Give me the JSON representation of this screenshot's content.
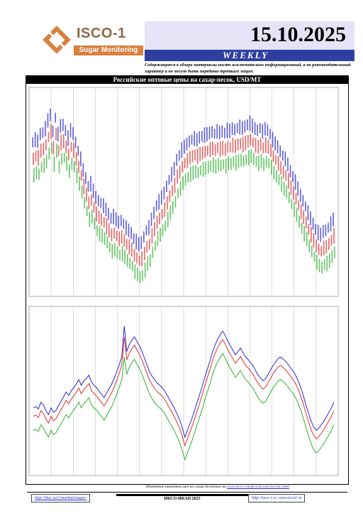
{
  "header": {
    "logo_name": "ISCO-1",
    "logo_tagline": "Sugar Monitoring",
    "date": "15.10.2025",
    "edition": "WEEKLY",
    "disclaimer": "Содержащиеся в обзоре материалы носят исключительно информационный, а не рекомендательный характер и не могут быть переданы третьим лицам."
  },
  "panel": {
    "title": "Российские оптовые цены на сахар-песок, USD/MT"
  },
  "footnote": {
    "text": "Изменение рыночных цен на сахар доступно на ",
    "link1": "www.isco-i.ru/",
    "link2": "docs/isco/prices/isc.html"
  },
  "footer": {
    "left_link": "http://iksc.ru/1/markets/sugar/",
    "middle": "ИКСО-ИКАН 2025",
    "right_links": "http://isco-i.ru, www.isco2.ru"
  },
  "colors": {
    "high": "#2a2ad0",
    "mid": "#e03030",
    "low": "#30b030",
    "brand": "#d9803d",
    "header_blue": "#2f3fa0"
  },
  "chart_data": [
    {
      "type": "bar",
      "description_series": [
        "high",
        "mid",
        "low"
      ],
      "x": [
        0,
        1,
        2,
        3,
        4,
        5,
        6,
        7,
        8,
        9,
        10,
        11,
        12,
        13,
        14,
        15,
        16,
        17,
        18,
        19,
        20,
        21,
        22,
        23,
        24,
        25,
        26,
        27,
        28,
        29,
        30,
        31,
        32,
        33,
        34,
        35,
        36,
        37,
        38,
        39,
        40,
        41,
        42,
        43,
        44,
        45,
        46,
        47,
        48,
        49,
        50,
        51,
        52,
        53,
        54,
        55,
        56,
        57,
        58,
        59,
        60,
        61,
        62,
        63,
        64,
        65,
        66,
        67,
        68,
        69,
        70,
        71,
        72,
        73,
        74,
        75,
        76,
        77,
        78,
        79,
        80,
        81,
        82,
        83,
        84,
        85,
        86,
        87,
        88,
        89,
        90,
        91,
        92,
        93,
        94,
        95,
        96,
        97,
        98,
        99,
        100,
        101,
        102,
        103,
        104,
        105,
        106,
        107,
        108,
        109,
        110,
        111,
        112,
        113,
        114,
        115,
        116,
        117,
        118,
        119
      ],
      "series": [
        {
          "values": [
            720,
            725,
            722,
            735,
            738,
            745,
            760,
            770,
            740,
            765,
            735,
            750,
            752,
            742,
            728,
            742,
            736,
            720,
            705,
            690,
            670,
            655,
            640,
            645,
            632,
            620,
            614,
            610,
            605,
            598,
            590,
            582,
            585,
            580,
            575,
            578,
            572,
            565,
            560,
            555,
            545,
            540,
            535,
            538,
            548,
            560,
            565,
            580,
            592,
            605,
            612,
            620,
            628,
            640,
            652,
            662,
            672,
            688,
            696,
            706,
            712,
            717,
            722,
            725,
            727,
            725,
            729,
            731,
            733,
            735,
            737,
            739,
            736,
            740,
            738,
            740,
            737,
            742,
            741,
            745,
            743,
            746,
            748,
            746,
            749,
            752,
            755,
            750,
            745,
            742,
            746,
            740,
            745,
            742,
            735,
            725,
            718,
            712,
            704,
            696,
            690,
            680,
            668,
            658,
            648,
            636,
            624,
            614,
            604,
            592,
            582,
            572,
            562,
            556,
            552,
            558,
            560,
            565,
            572,
            580
          ]
        },
        {
          "values": [
            690,
            695,
            692,
            705,
            708,
            715,
            730,
            740,
            710,
            735,
            705,
            720,
            722,
            712,
            698,
            712,
            706,
            690,
            675,
            660,
            640,
            625,
            610,
            615,
            602,
            590,
            584,
            580,
            575,
            568,
            560,
            552,
            555,
            550,
            545,
            548,
            542,
            535,
            530,
            525,
            515,
            510,
            505,
            508,
            518,
            530,
            535,
            550,
            562,
            575,
            582,
            590,
            598,
            610,
            622,
            632,
            642,
            658,
            666,
            676,
            682,
            687,
            692,
            695,
            697,
            695,
            699,
            701,
            703,
            705,
            707,
            709,
            706,
            710,
            708,
            710,
            707,
            712,
            711,
            715,
            713,
            716,
            718,
            716,
            719,
            722,
            725,
            720,
            715,
            712,
            716,
            710,
            715,
            712,
            705,
            695,
            688,
            682,
            674,
            666,
            660,
            650,
            638,
            628,
            618,
            606,
            594,
            584,
            574,
            562,
            552,
            542,
            532,
            526,
            522,
            528,
            530,
            535,
            542,
            550
          ]
        },
        {
          "values": [
            660,
            665,
            662,
            675,
            678,
            685,
            700,
            710,
            680,
            705,
            675,
            690,
            692,
            682,
            668,
            682,
            676,
            660,
            645,
            630,
            610,
            595,
            580,
            585,
            572,
            560,
            554,
            550,
            545,
            538,
            530,
            522,
            525,
            520,
            515,
            518,
            512,
            505,
            500,
            495,
            485,
            480,
            475,
            478,
            488,
            500,
            505,
            520,
            532,
            545,
            552,
            560,
            568,
            580,
            592,
            602,
            612,
            628,
            636,
            646,
            652,
            657,
            662,
            665,
            667,
            665,
            669,
            671,
            673,
            675,
            677,
            679,
            676,
            680,
            678,
            680,
            677,
            682,
            681,
            685,
            683,
            686,
            688,
            686,
            689,
            692,
            695,
            690,
            685,
            682,
            686,
            680,
            685,
            682,
            675,
            665,
            658,
            652,
            644,
            636,
            630,
            620,
            608,
            598,
            588,
            576,
            564,
            554,
            544,
            532,
            522,
            512,
            502,
            496,
            492,
            498,
            500,
            505,
            512,
            520
          ]
        }
      ],
      "ylim": [
        440,
        820
      ]
    },
    {
      "type": "line",
      "x": [
        0,
        1,
        2,
        3,
        4,
        5,
        6,
        7,
        8,
        9,
        10,
        11,
        12,
        13,
        14,
        15,
        16,
        17,
        18,
        19,
        20,
        21,
        22,
        23,
        24,
        25,
        26,
        27,
        28,
        29,
        30,
        31,
        32,
        33,
        34,
        35,
        36,
        37,
        38,
        39,
        40,
        41,
        42,
        43,
        44,
        45,
        46,
        47,
        48,
        49,
        50,
        51,
        52,
        53,
        54,
        55,
        56,
        57,
        58,
        59,
        60,
        61,
        62,
        63,
        64,
        65,
        66,
        67,
        68,
        69,
        70,
        71,
        72,
        73,
        74,
        75,
        76,
        77,
        78,
        79,
        80,
        81,
        82,
        83,
        84,
        85,
        86,
        87,
        88,
        89,
        90,
        91,
        92,
        93,
        94,
        95,
        96,
        97,
        98,
        99,
        100,
        101,
        102,
        103,
        104,
        105,
        106,
        107,
        108,
        109,
        110,
        111,
        112,
        113,
        114,
        115,
        116,
        117,
        118,
        119
      ],
      "series": [
        {
          "values": [
            600,
            602,
            598,
            610,
            605,
            595,
            588,
            600,
            592,
            596,
            604,
            612,
            620,
            628,
            622,
            630,
            636,
            642,
            650,
            640,
            648,
            652,
            658,
            646,
            640,
            636,
            630,
            624,
            618,
            626,
            634,
            642,
            652,
            664,
            676,
            690,
            745,
            700,
            712,
            720,
            726,
            718,
            710,
            700,
            688,
            676,
            664,
            656,
            650,
            644,
            640,
            636,
            630,
            622,
            614,
            606,
            598,
            588,
            578,
            564,
            548,
            560,
            572,
            584,
            598,
            612,
            626,
            640,
            656,
            670,
            684,
            700,
            712,
            722,
            730,
            736,
            728,
            718,
            710,
            702,
            694,
            700,
            706,
            698,
            690,
            686,
            680,
            674,
            666,
            658,
            652,
            648,
            652,
            660,
            668,
            676,
            682,
            688,
            690,
            686,
            682,
            676,
            670,
            664,
            656,
            646,
            634,
            620,
            604,
            590,
            576,
            566,
            560,
            564,
            570,
            576,
            584,
            592,
            600,
            610
          ]
        },
        {
          "values": [
            585,
            587,
            583,
            595,
            590,
            580,
            573,
            585,
            577,
            581,
            589,
            597,
            605,
            613,
            607,
            615,
            621,
            627,
            635,
            625,
            633,
            637,
            643,
            631,
            625,
            621,
            615,
            609,
            603,
            611,
            619,
            627,
            637,
            649,
            661,
            675,
            725,
            685,
            697,
            705,
            711,
            703,
            695,
            685,
            673,
            661,
            649,
            641,
            635,
            629,
            625,
            621,
            615,
            607,
            599,
            591,
            583,
            573,
            563,
            549,
            533,
            545,
            557,
            569,
            583,
            597,
            611,
            625,
            641,
            655,
            669,
            685,
            697,
            707,
            715,
            721,
            713,
            703,
            695,
            687,
            679,
            685,
            691,
            683,
            675,
            671,
            665,
            659,
            651,
            643,
            637,
            633,
            637,
            645,
            653,
            661,
            667,
            673,
            675,
            671,
            667,
            661,
            655,
            649,
            641,
            631,
            619,
            605,
            589,
            575,
            561,
            551,
            545,
            549,
            555,
            561,
            569,
            577,
            585,
            595
          ]
        },
        {
          "values": [
            560,
            562,
            558,
            570,
            565,
            555,
            548,
            560,
            552,
            556,
            564,
            572,
            580,
            588,
            582,
            590,
            596,
            602,
            610,
            600,
            608,
            612,
            618,
            606,
            600,
            596,
            590,
            584,
            578,
            586,
            594,
            602,
            612,
            624,
            636,
            650,
            690,
            660,
            672,
            680,
            686,
            678,
            670,
            660,
            648,
            636,
            624,
            616,
            610,
            604,
            600,
            596,
            590,
            582,
            574,
            566,
            558,
            548,
            538,
            524,
            508,
            520,
            532,
            544,
            558,
            572,
            586,
            600,
            616,
            630,
            644,
            660,
            672,
            682,
            690,
            696,
            688,
            678,
            670,
            662,
            654,
            660,
            666,
            658,
            650,
            646,
            640,
            634,
            626,
            618,
            612,
            608,
            612,
            620,
            628,
            636,
            642,
            648,
            650,
            646,
            642,
            636,
            630,
            624,
            616,
            606,
            594,
            580,
            564,
            550,
            536,
            526,
            520,
            524,
            530,
            536,
            544,
            552,
            560,
            570
          ]
        }
      ],
      "ylim": [
        480,
        780
      ]
    }
  ]
}
